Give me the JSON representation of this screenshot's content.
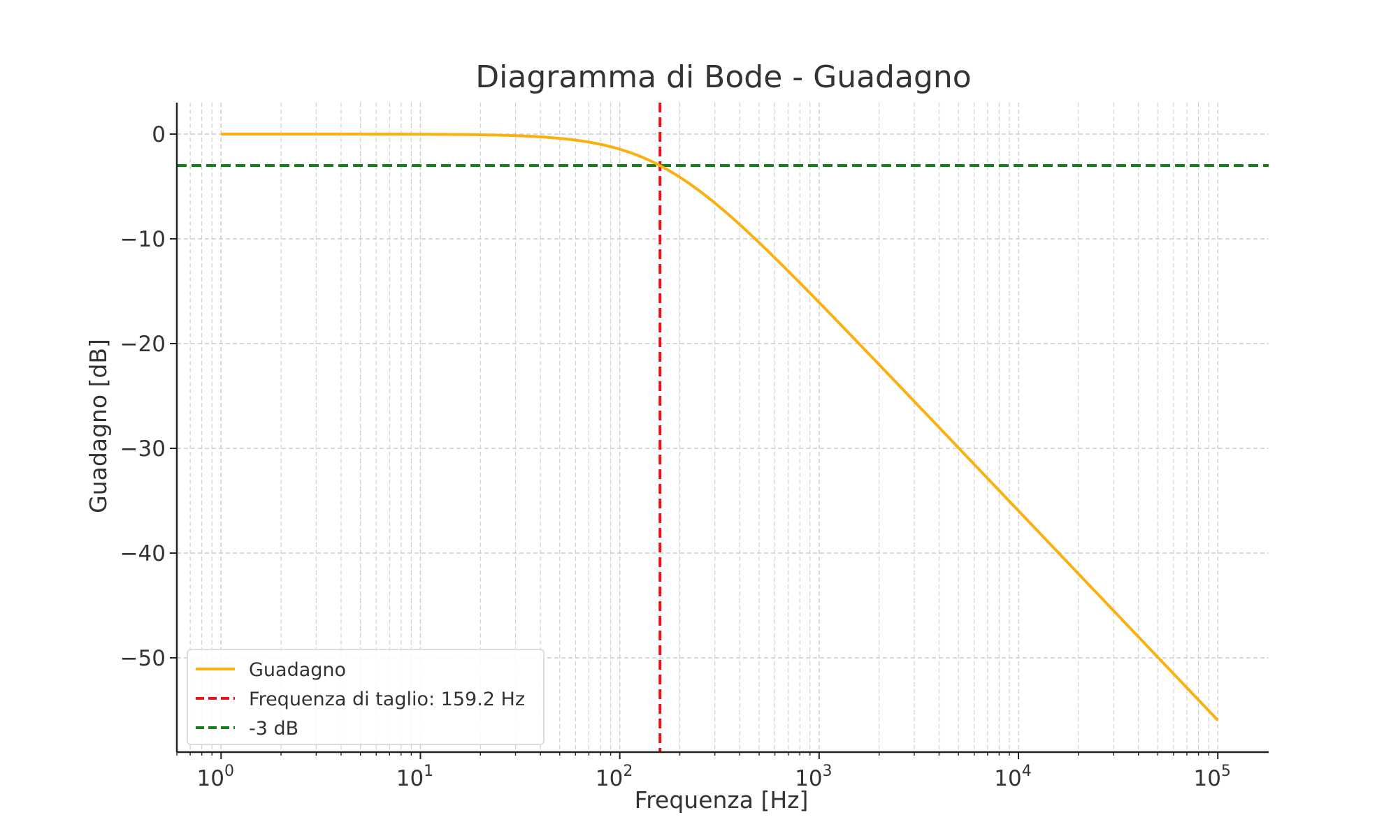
{
  "chart_data": {
    "type": "line",
    "title": "Diagramma di Bode - Guadagno",
    "xlabel": "Frequenza [Hz]",
    "ylabel": "Guadagno [dB]",
    "x_scale": "log",
    "xlim": [
      0.6,
      180000
    ],
    "ylim": [
      -59,
      3
    ],
    "grid": true,
    "legend_position": "lower-left",
    "x_ticks": [
      {
        "value": 1,
        "base": "10",
        "exp": "0"
      },
      {
        "value": 10,
        "base": "10",
        "exp": "1"
      },
      {
        "value": 100,
        "base": "10",
        "exp": "2"
      },
      {
        "value": 1000,
        "base": "10",
        "exp": "3"
      },
      {
        "value": 10000,
        "base": "10",
        "exp": "4"
      },
      {
        "value": 100000,
        "base": "10",
        "exp": "5"
      }
    ],
    "y_ticks": [
      {
        "value": 0,
        "label": "0"
      },
      {
        "value": -10,
        "label": "−10"
      },
      {
        "value": -20,
        "label": "−20"
      },
      {
        "value": -30,
        "label": "−30"
      },
      {
        "value": -40,
        "label": "−40"
      },
      {
        "value": -50,
        "label": "−50"
      }
    ],
    "series": [
      {
        "name": "Guadagno",
        "color": "#FBB010",
        "style": "solid",
        "x": [
          1,
          2,
          5,
          10,
          20,
          40,
          60,
          80,
          100,
          130,
          159.2,
          200,
          300,
          500,
          700,
          1000,
          2000,
          5000,
          10000,
          20000,
          50000,
          100000
        ],
        "y": [
          0.0,
          -0.001,
          -0.004,
          -0.017,
          -0.07,
          -0.26,
          -0.56,
          -0.97,
          -1.45,
          -2.13,
          -3.01,
          -4.1,
          -6.4,
          -10.4,
          -13.1,
          -16.1,
          -22.0,
          -29.9,
          -35.96,
          -41.98,
          -49.94,
          -55.96
        ]
      },
      {
        "name": "Frequenza di taglio: 159.2 Hz",
        "color": "#E8141A",
        "style": "dashed",
        "orientation": "vertical",
        "x_value": 159.2
      },
      {
        "name": "-3 dB",
        "color": "#15801A",
        "style": "dashed",
        "orientation": "horizontal",
        "y_value": -3
      }
    ]
  }
}
